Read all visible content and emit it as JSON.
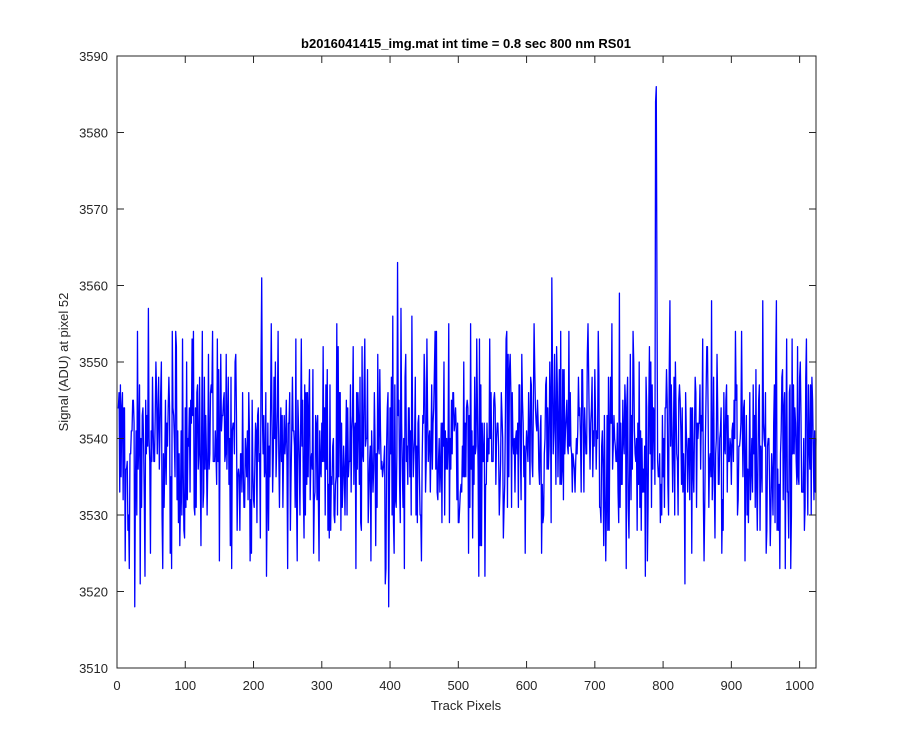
{
  "chart_data": {
    "type": "line",
    "title": "b2016041415_img.mat int time = 0.8 sec  800 nm RS01",
    "xlabel": "Track Pixels",
    "ylabel": "Signal (ADU) at pixel 52",
    "xlim": [
      0,
      1024
    ],
    "ylim": [
      3510,
      3590
    ],
    "xticks": [
      0,
      100,
      200,
      300,
      400,
      500,
      600,
      700,
      800,
      900,
      1000
    ],
    "yticks": [
      3510,
      3520,
      3530,
      3540,
      3550,
      3560,
      3570,
      3580,
      3590
    ],
    "grid": false,
    "legend": "none",
    "series": [
      {
        "color": "#0000ff",
        "noise": {
          "count": 1024,
          "mean": 3539,
          "spread": 6.5,
          "min": 3518,
          "max": 3563
        },
        "points": [
          {
            "x": 1,
            "y": 3544
          },
          {
            "x": 4,
            "y": 3533
          },
          {
            "x": 8,
            "y": 3546
          },
          {
            "x": 12,
            "y": 3524
          },
          {
            "x": 18,
            "y": 3523
          },
          {
            "x": 24,
            "y": 3545
          },
          {
            "x": 26,
            "y": 3518
          },
          {
            "x": 34,
            "y": 3521
          },
          {
            "x": 46,
            "y": 3557
          },
          {
            "x": 49,
            "y": 3525
          },
          {
            "x": 65,
            "y": 3550
          },
          {
            "x": 67,
            "y": 3523
          },
          {
            "x": 80,
            "y": 3523
          },
          {
            "x": 86,
            "y": 3554
          },
          {
            "x": 96,
            "y": 3553
          },
          {
            "x": 112,
            "y": 3554
          },
          {
            "x": 125,
            "y": 3554
          },
          {
            "x": 140,
            "y": 3554
          },
          {
            "x": 150,
            "y": 3524
          },
          {
            "x": 160,
            "y": 3551
          },
          {
            "x": 166,
            "y": 3526
          },
          {
            "x": 195,
            "y": 3524
          },
          {
            "x": 212,
            "y": 3561
          },
          {
            "x": 236,
            "y": 3554
          },
          {
            "x": 250,
            "y": 3523
          },
          {
            "x": 262,
            "y": 3553
          },
          {
            "x": 274,
            "y": 3527
          },
          {
            "x": 296,
            "y": 3524
          },
          {
            "x": 322,
            "y": 3555
          },
          {
            "x": 328,
            "y": 3528
          },
          {
            "x": 350,
            "y": 3523
          },
          {
            "x": 372,
            "y": 3524
          },
          {
            "x": 385,
            "y": 3549
          },
          {
            "x": 393,
            "y": 3521
          },
          {
            "x": 398,
            "y": 3518
          },
          {
            "x": 406,
            "y": 3525
          },
          {
            "x": 411,
            "y": 3563
          },
          {
            "x": 416,
            "y": 3557
          },
          {
            "x": 421,
            "y": 3523
          },
          {
            "x": 432,
            "y": 3556
          },
          {
            "x": 446,
            "y": 3524
          },
          {
            "x": 466,
            "y": 3554
          },
          {
            "x": 486,
            "y": 3555
          },
          {
            "x": 515,
            "y": 3525
          },
          {
            "x": 518,
            "y": 3555
          },
          {
            "x": 530,
            "y": 3522
          },
          {
            "x": 539,
            "y": 3522
          },
          {
            "x": 571,
            "y": 3554
          },
          {
            "x": 598,
            "y": 3525
          },
          {
            "x": 622,
            "y": 3525
          },
          {
            "x": 637,
            "y": 3561
          },
          {
            "x": 650,
            "y": 3554
          },
          {
            "x": 662,
            "y": 3554
          },
          {
            "x": 690,
            "y": 3555
          },
          {
            "x": 705,
            "y": 3554
          },
          {
            "x": 716,
            "y": 3524
          },
          {
            "x": 736,
            "y": 3559
          },
          {
            "x": 746,
            "y": 3523
          },
          {
            "x": 756,
            "y": 3554
          },
          {
            "x": 765,
            "y": 3550
          },
          {
            "x": 774,
            "y": 3522
          },
          {
            "x": 789,
            "y": 3584
          },
          {
            "x": 790,
            "y": 3586
          },
          {
            "x": 791,
            "y": 3560
          },
          {
            "x": 793,
            "y": 3535
          },
          {
            "x": 810,
            "y": 3558
          },
          {
            "x": 818,
            "y": 3550
          },
          {
            "x": 832,
            "y": 3521
          },
          {
            "x": 858,
            "y": 3553
          },
          {
            "x": 871,
            "y": 3558
          },
          {
            "x": 886,
            "y": 3525
          },
          {
            "x": 906,
            "y": 3554
          },
          {
            "x": 920,
            "y": 3524
          },
          {
            "x": 946,
            "y": 3558
          },
          {
            "x": 951,
            "y": 3525
          },
          {
            "x": 966,
            "y": 3558
          },
          {
            "x": 984,
            "y": 3527
          },
          {
            "x": 1010,
            "y": 3553
          },
          {
            "x": 1012,
            "y": 3530
          },
          {
            "x": 1017,
            "y": 3530
          },
          {
            "x": 1019,
            "y": 3545
          },
          {
            "x": 1024,
            "y": 3540
          }
        ]
      }
    ]
  }
}
